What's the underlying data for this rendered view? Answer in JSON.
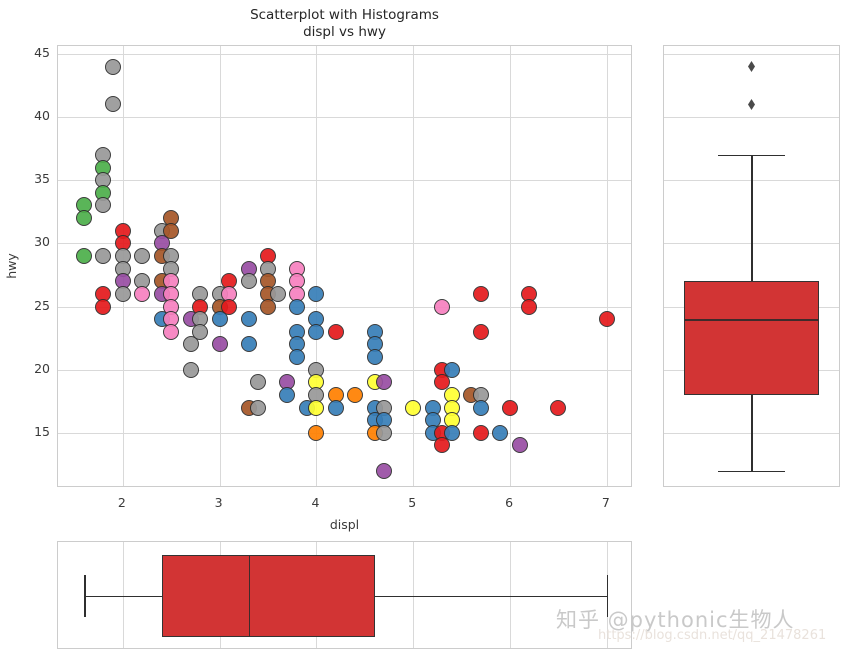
{
  "title": {
    "line1": "Scatterplot with Histograms",
    "line2": "displ vs hwy"
  },
  "axes": {
    "xlabel": "displ",
    "ylabel": "hwy",
    "x_ticks": [
      2,
      3,
      4,
      5,
      6,
      7
    ],
    "y_ticks": [
      15,
      20,
      25,
      30,
      35,
      40,
      45
    ],
    "xlim": [
      1.33,
      7.27
    ],
    "ylim": [
      10.63,
      45.63
    ],
    "grid": true
  },
  "colors": {
    "grid": "#d9d9d9",
    "spine": "#cccccc",
    "box_fill": "#d23434",
    "box_edge": "#333333",
    "whisker": "#2f2f2f",
    "flier": "#4a4a4a",
    "point_edge": "#2d2d2d",
    "palette": {
      "red": "#e41a1c",
      "blue": "#377eb8",
      "green": "#4daf4a",
      "purple": "#984ea3",
      "orange": "#ff7f00",
      "yellow": "#ffff33",
      "brown": "#a65628",
      "pink": "#f781bf",
      "grey": "#999999"
    }
  },
  "watermark": {
    "line1": "知乎 @pythonic生物人",
    "line2": "https://blog.csdn.net/qq_21478261"
  },
  "chart_data": [
    {
      "type": "scatter",
      "title": "Scatterplot with Histograms displ vs hwy",
      "xlabel": "displ",
      "ylabel": "hwy",
      "xlim": [
        1.33,
        7.27
      ],
      "ylim": [
        10.63,
        45.63
      ],
      "points_format": [
        "displ",
        "hwy",
        "color"
      ],
      "points": [
        [
          1.6,
          33,
          "green"
        ],
        [
          1.6,
          32,
          "green"
        ],
        [
          1.6,
          29,
          "green"
        ],
        [
          1.8,
          37,
          "grey"
        ],
        [
          1.8,
          36,
          "green"
        ],
        [
          1.8,
          35,
          "grey"
        ],
        [
          1.8,
          34,
          "green"
        ],
        [
          1.8,
          33,
          "grey"
        ],
        [
          1.8,
          29,
          "grey"
        ],
        [
          1.8,
          26,
          "red"
        ],
        [
          1.8,
          25,
          "red"
        ],
        [
          1.9,
          44,
          "grey"
        ],
        [
          1.9,
          41,
          "grey"
        ],
        [
          2.0,
          31,
          "red"
        ],
        [
          2.0,
          30,
          "red"
        ],
        [
          2.0,
          29,
          "grey"
        ],
        [
          2.0,
          28,
          "grey"
        ],
        [
          2.0,
          27,
          "purple"
        ],
        [
          2.0,
          26,
          "grey"
        ],
        [
          2.2,
          29,
          "grey"
        ],
        [
          2.2,
          27,
          "grey"
        ],
        [
          2.2,
          26,
          "pink"
        ],
        [
          2.4,
          31,
          "grey"
        ],
        [
          2.4,
          30,
          "purple"
        ],
        [
          2.4,
          29,
          "brown"
        ],
        [
          2.4,
          27,
          "brown"
        ],
        [
          2.4,
          26,
          "purple"
        ],
        [
          2.4,
          24,
          "blue"
        ],
        [
          2.5,
          32,
          "brown"
        ],
        [
          2.5,
          31,
          "brown"
        ],
        [
          2.5,
          29,
          "grey"
        ],
        [
          2.5,
          28,
          "grey"
        ],
        [
          2.5,
          27,
          "pink"
        ],
        [
          2.5,
          26,
          "pink"
        ],
        [
          2.5,
          25,
          "pink"
        ],
        [
          2.5,
          24,
          "pink"
        ],
        [
          2.5,
          23,
          "pink"
        ],
        [
          2.7,
          24,
          "purple"
        ],
        [
          2.7,
          22,
          "grey"
        ],
        [
          2.7,
          20,
          "grey"
        ],
        [
          2.8,
          26,
          "grey"
        ],
        [
          2.8,
          25,
          "red"
        ],
        [
          2.8,
          24,
          "grey"
        ],
        [
          2.8,
          23,
          "grey"
        ],
        [
          3.0,
          26,
          "grey"
        ],
        [
          3.0,
          25,
          "brown"
        ],
        [
          3.0,
          24,
          "blue"
        ],
        [
          3.0,
          22,
          "purple"
        ],
        [
          3.1,
          27,
          "red"
        ],
        [
          3.1,
          26,
          "pink"
        ],
        [
          3.1,
          25,
          "red"
        ],
        [
          3.3,
          28,
          "purple"
        ],
        [
          3.3,
          27,
          "grey"
        ],
        [
          3.3,
          24,
          "blue"
        ],
        [
          3.3,
          22,
          "blue"
        ],
        [
          3.3,
          17,
          "brown"
        ],
        [
          3.4,
          19,
          "grey"
        ],
        [
          3.4,
          17,
          "grey"
        ],
        [
          3.5,
          29,
          "red"
        ],
        [
          3.5,
          28,
          "grey"
        ],
        [
          3.5,
          27,
          "brown"
        ],
        [
          3.5,
          26,
          "brown"
        ],
        [
          3.5,
          25,
          "brown"
        ],
        [
          3.6,
          26,
          "grey"
        ],
        [
          3.7,
          19,
          "purple"
        ],
        [
          3.7,
          18,
          "blue"
        ],
        [
          3.8,
          28,
          "pink"
        ],
        [
          3.8,
          27,
          "pink"
        ],
        [
          3.8,
          26,
          "pink"
        ],
        [
          3.8,
          25,
          "blue"
        ],
        [
          3.8,
          23,
          "blue"
        ],
        [
          3.8,
          22,
          "blue"
        ],
        [
          3.8,
          21,
          "blue"
        ],
        [
          3.9,
          17,
          "blue"
        ],
        [
          4.0,
          26,
          "blue"
        ],
        [
          4.0,
          24,
          "blue"
        ],
        [
          4.0,
          23,
          "blue"
        ],
        [
          4.0,
          20,
          "grey"
        ],
        [
          4.0,
          19,
          "yellow"
        ],
        [
          4.0,
          18,
          "grey"
        ],
        [
          4.0,
          17,
          "yellow"
        ],
        [
          4.0,
          15,
          "orange"
        ],
        [
          4.2,
          23,
          "red"
        ],
        [
          4.2,
          18,
          "orange"
        ],
        [
          4.2,
          17,
          "blue"
        ],
        [
          4.4,
          18,
          "orange"
        ],
        [
          4.6,
          23,
          "blue"
        ],
        [
          4.6,
          22,
          "blue"
        ],
        [
          4.6,
          21,
          "blue"
        ],
        [
          4.6,
          19,
          "yellow"
        ],
        [
          4.6,
          17,
          "blue"
        ],
        [
          4.6,
          16,
          "blue"
        ],
        [
          4.6,
          15,
          "orange"
        ],
        [
          4.7,
          19,
          "purple"
        ],
        [
          4.7,
          17,
          "grey"
        ],
        [
          4.7,
          16,
          "blue"
        ],
        [
          4.7,
          15,
          "grey"
        ],
        [
          4.7,
          12,
          "purple"
        ],
        [
          5.0,
          17,
          "yellow"
        ],
        [
          5.2,
          17,
          "blue"
        ],
        [
          5.2,
          16,
          "blue"
        ],
        [
          5.2,
          15,
          "blue"
        ],
        [
          5.3,
          25,
          "pink"
        ],
        [
          5.3,
          20,
          "red"
        ],
        [
          5.3,
          19,
          "red"
        ],
        [
          5.3,
          15,
          "red"
        ],
        [
          5.3,
          14,
          "red"
        ],
        [
          5.4,
          20,
          "blue"
        ],
        [
          5.4,
          18,
          "yellow"
        ],
        [
          5.4,
          17,
          "yellow"
        ],
        [
          5.4,
          16,
          "yellow"
        ],
        [
          5.4,
          15,
          "blue"
        ],
        [
          5.6,
          18,
          "brown"
        ],
        [
          5.7,
          26,
          "red"
        ],
        [
          5.7,
          23,
          "red"
        ],
        [
          5.7,
          18,
          "grey"
        ],
        [
          5.7,
          17,
          "blue"
        ],
        [
          5.7,
          15,
          "red"
        ],
        [
          5.9,
          15,
          "blue"
        ],
        [
          6.0,
          17,
          "red"
        ],
        [
          6.1,
          14,
          "purple"
        ],
        [
          6.2,
          26,
          "red"
        ],
        [
          6.2,
          25,
          "red"
        ],
        [
          6.5,
          17,
          "red"
        ],
        [
          7.0,
          24,
          "red"
        ]
      ]
    },
    {
      "type": "boxplot",
      "variable": "hwy",
      "orient": "vertical",
      "position": "right-margin",
      "stats": {
        "whisker_low": 12,
        "q1": 18,
        "median": 24,
        "q3": 27,
        "whisker_high": 37
      },
      "outliers": [
        41,
        44
      ]
    },
    {
      "type": "boxplot",
      "variable": "displ",
      "orient": "horizontal",
      "position": "bottom-margin",
      "stats": {
        "whisker_low": 1.6,
        "q1": 2.4,
        "median": 3.3,
        "q3": 4.6,
        "whisker_high": 7.0
      },
      "outliers": []
    }
  ]
}
